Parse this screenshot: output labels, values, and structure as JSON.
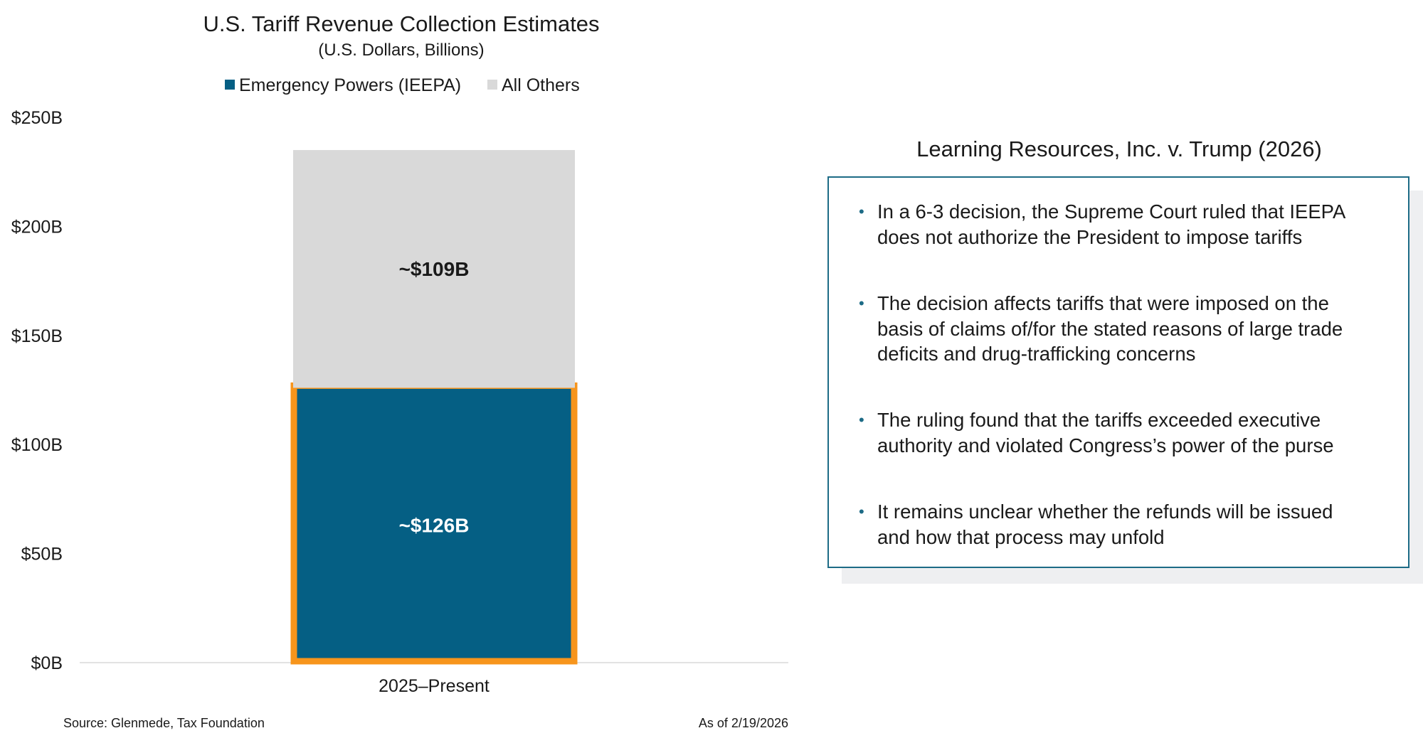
{
  "chart_data": {
    "type": "bar",
    "stacked": true,
    "title": "U.S. Tariff Revenue Collection Estimates",
    "subtitle": "(U.S. Dollars, Billions)",
    "categories": [
      "2025–Present"
    ],
    "series": [
      {
        "name": "Emergency Powers (IEEPA)",
        "values": [
          126
        ],
        "color": "#055f84",
        "data_labels": [
          "~$126B"
        ],
        "highlighted": true,
        "highlight_color": "#f7951c"
      },
      {
        "name": "All Others",
        "values": [
          109
        ],
        "color": "#d9d9d9",
        "data_labels": [
          "~$109B"
        ]
      }
    ],
    "yticks": [
      "$0B",
      "$50B",
      "$100B",
      "$150B",
      "$200B",
      "$250B"
    ],
    "ylim": [
      0,
      250
    ],
    "legend_position": "top-center",
    "grid": false,
    "source": "Source: Glenmede, Tax Foundation",
    "as_of": "As of 2/19/2026"
  },
  "panel": {
    "title": "Learning Resources, Inc. v. Trump (2026)",
    "accent_color": "#1d6b86",
    "bullet_icon": "bullet-dot-icon",
    "bullets": [
      [
        "In a 6-3 decision, the Supreme Court ruled that IEEPA",
        "does not authorize the President to impose tariffs"
      ],
      [
        "The decision affects tariffs that were imposed on the",
        "basis of claims of/for the stated reasons of large trade",
        "deficits and drug-trafficking concerns"
      ],
      [
        "The ruling found that the tariffs exceeded executive",
        "authority and violated Congress’s power of the purse"
      ],
      [
        "It remains unclear whether the refunds will be issued",
        "and how that process may unfold"
      ]
    ]
  }
}
